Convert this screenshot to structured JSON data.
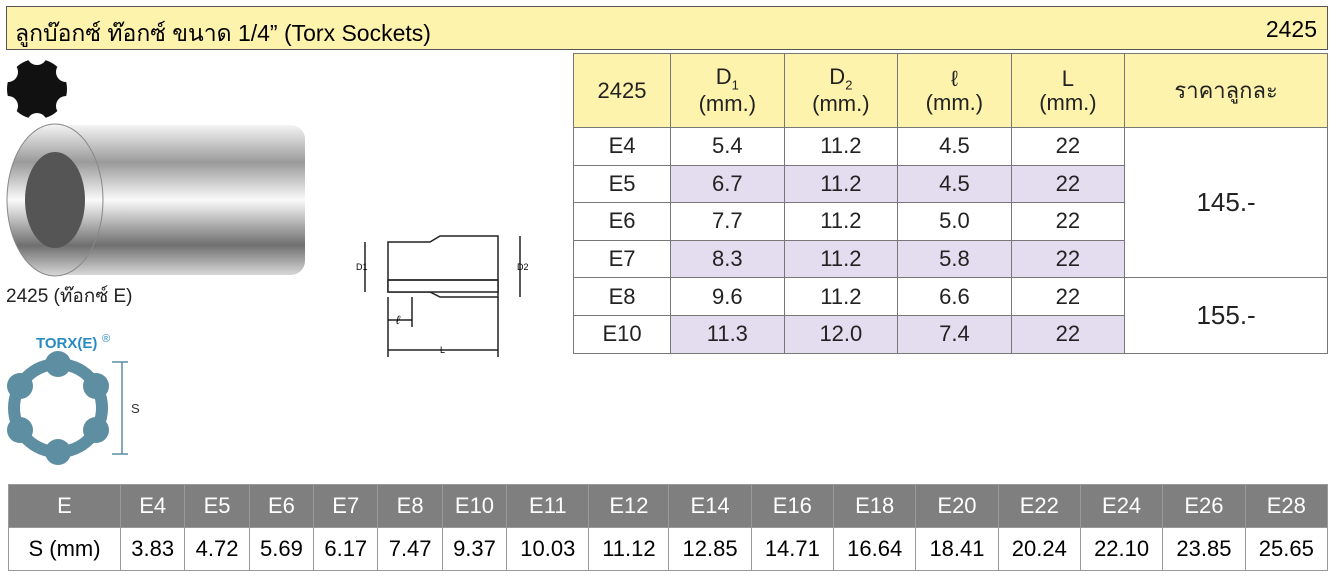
{
  "header": {
    "title": "ลูกบ๊อกซ์ ท๊อกซ์ ขนาด 1/4” (Torx Sockets)",
    "code": "2425"
  },
  "product_caption": "2425 (ท๊อกซ์ E)",
  "torx_label": "TORX(E)",
  "torx_mark": "®",
  "dimension_s": "S",
  "diagram_labels": {
    "d1": "D1",
    "d2": "D2",
    "l": "ℓ",
    "L": "L"
  },
  "table": {
    "headers": [
      {
        "main": "2425"
      },
      {
        "main": "D",
        "sub": "1",
        "unit": "(mm.)"
      },
      {
        "main": "D",
        "sub": "2",
        "unit": "(mm.)"
      },
      {
        "main": "ℓ",
        "unit": "(mm.)"
      },
      {
        "main": "L",
        "unit": "(mm.)"
      },
      {
        "main": "ราคาลูกละ"
      }
    ],
    "rows": [
      [
        "E4",
        "5.4",
        "11.2",
        "4.5",
        "22"
      ],
      [
        "E5",
        "6.7",
        "11.2",
        "4.5",
        "22"
      ],
      [
        "E6",
        "7.7",
        "11.2",
        "5.0",
        "22"
      ],
      [
        "E7",
        "8.3",
        "11.2",
        "5.8",
        "22"
      ],
      [
        "E8",
        "9.6",
        "11.2",
        "6.6",
        "22"
      ],
      [
        "E10",
        "11.3",
        "12.0",
        "7.4",
        "22"
      ]
    ],
    "prices": [
      "145.-",
      "155.-"
    ]
  },
  "size_table": {
    "header_label": "E",
    "row_label": "S (mm)",
    "sizes": [
      "E4",
      "E5",
      "E6",
      "E7",
      "E8",
      "E10",
      "E11",
      "E12",
      "E14",
      "E16",
      "E18",
      "E20",
      "E22",
      "E24",
      "E26",
      "E28"
    ],
    "s_values": [
      "3.83",
      "4.72",
      "5.69",
      "6.17",
      "7.47",
      "9.37",
      "10.03",
      "11.12",
      "12.85",
      "14.71",
      "16.64",
      "18.41",
      "20.24",
      "22.10",
      "23.85",
      "25.65"
    ]
  }
}
